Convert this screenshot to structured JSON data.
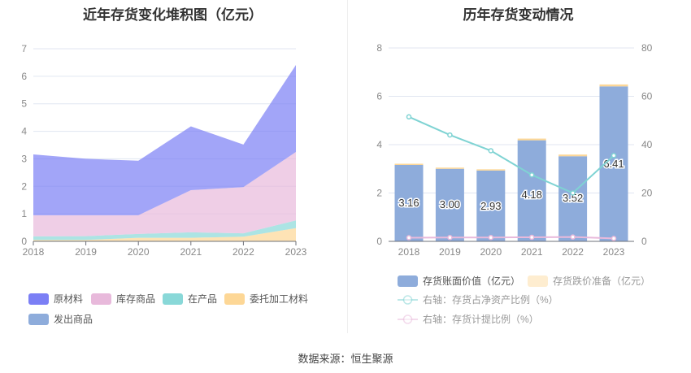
{
  "left_title": "近年存货变化堆积图（亿元）",
  "right_title": "历年存货变动情况",
  "source": "数据来源：恒生聚源",
  "chart_data": [
    {
      "type": "area",
      "stacked": true,
      "title": "近年存货变化堆积图（亿元）",
      "categories": [
        "2018",
        "2019",
        "2020",
        "2021",
        "2022",
        "2023"
      ],
      "ylim": [
        0,
        7
      ],
      "yticks": [
        "0",
        "1",
        "2",
        "3",
        "4",
        "5",
        "6",
        "7"
      ],
      "grid": true,
      "legend_placement": "bottom",
      "series": [
        {
          "name": "原材料",
          "color": "#7b7ff5",
          "values": [
            2.21,
            2.05,
            1.98,
            2.32,
            1.55,
            3.16
          ]
        },
        {
          "name": "库存商品",
          "color": "#e8b9db",
          "values": [
            0.77,
            0.76,
            0.68,
            1.53,
            1.68,
            2.49
          ]
        },
        {
          "name": "在产品",
          "color": "#89d8d8",
          "values": [
            0.13,
            0.14,
            0.14,
            0.2,
            0.12,
            0.28
          ]
        },
        {
          "name": "委托加工材料",
          "color": "#fdd796",
          "values": [
            0.05,
            0.05,
            0.13,
            0.13,
            0.17,
            0.48
          ]
        },
        {
          "name": "发出商品",
          "color": "#8eacdb",
          "values": [
            0,
            0,
            0,
            0,
            0,
            0
          ]
        }
      ]
    },
    {
      "type": "bar",
      "stacked": true,
      "title": "历年存货变动情况",
      "categories": [
        "2018",
        "2019",
        "2020",
        "2021",
        "2022",
        "2023"
      ],
      "ylim": [
        0,
        8
      ],
      "yticks": [
        "0",
        "2",
        "4",
        "6",
        "8"
      ],
      "y2lim": [
        0,
        80
      ],
      "y2ticks": [
        "0",
        "20",
        "40",
        "60",
        "80"
      ],
      "grid": true,
      "legend_placement": "bottom",
      "series": [
        {
          "name": "存货账面价值（亿元）",
          "color": "#8eacdb",
          "values": [
            3.16,
            3.0,
            2.93,
            4.18,
            3.52,
            6.41
          ],
          "labels": [
            "3.16",
            "3.00",
            "2.93",
            "4.18",
            "3.52",
            "6.41"
          ]
        },
        {
          "name": "存货跌价准备（亿元）",
          "color": "#fdd796",
          "values": [
            0.05,
            0.05,
            0.05,
            0.07,
            0.07,
            0.08
          ]
        },
        {
          "name": "右轴：存货占净资产比例（%）",
          "type": "line",
          "axis": "right",
          "color": "#7fd3d3",
          "values": [
            51.5,
            44,
            37.5,
            27.5,
            20,
            35.5
          ]
        },
        {
          "name": "右轴：存货计提比例（%）",
          "type": "line",
          "axis": "right",
          "color": "#e8b9db",
          "values": [
            1.5,
            1.6,
            1.6,
            1.7,
            1.8,
            1.2
          ]
        }
      ]
    }
  ]
}
